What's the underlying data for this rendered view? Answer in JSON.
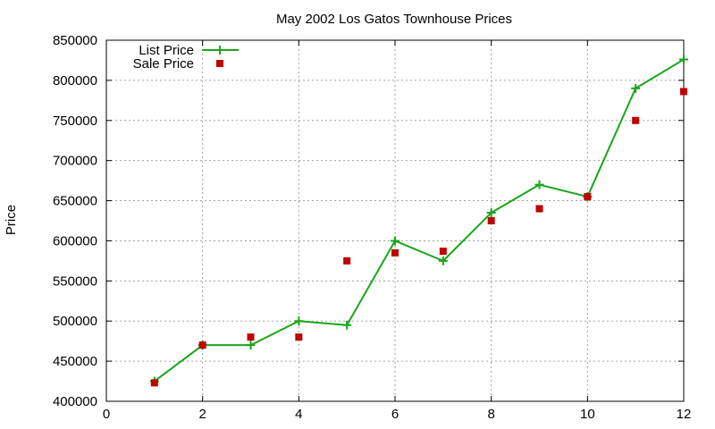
{
  "chart_data": {
    "type": "line",
    "title": "May 2002 Los Gatos Townhouse Prices",
    "xlabel": "",
    "ylabel": "Price",
    "xlim": [
      0,
      12
    ],
    "ylim": [
      400000,
      850000
    ],
    "x_ticks": [
      "0",
      "2",
      "4",
      "6",
      "8",
      "10",
      "12"
    ],
    "y_ticks": [
      "400000",
      "450000",
      "500000",
      "550000",
      "600000",
      "650000",
      "700000",
      "750000",
      "800000",
      "850000"
    ],
    "grid": true,
    "legend_position": "top-left",
    "series": [
      {
        "name": "List Price",
        "style": "line-with-plus-markers",
        "color": "#1aa51a",
        "x": [
          1,
          2,
          3,
          4,
          5,
          6,
          7,
          8,
          9,
          10,
          11,
          12
        ],
        "y": [
          425000,
          470000,
          470000,
          500000,
          495000,
          600000,
          575000,
          635000,
          670000,
          655000,
          790000,
          826000
        ]
      },
      {
        "name": "Sale Price",
        "style": "square-points",
        "color": "#c00000",
        "x": [
          1,
          2,
          3,
          4,
          5,
          6,
          7,
          8,
          9,
          10,
          11,
          12
        ],
        "y": [
          423000,
          470000,
          480000,
          480000,
          575000,
          585000,
          587000,
          625000,
          640000,
          655000,
          750000,
          786000
        ]
      }
    ]
  }
}
